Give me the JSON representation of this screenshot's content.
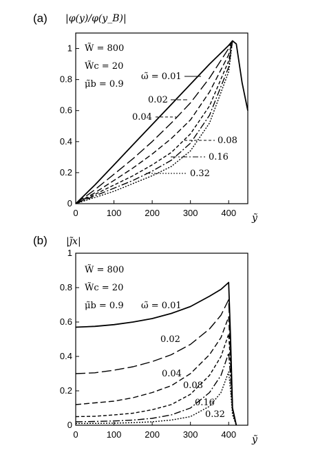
{
  "chart_data": [
    {
      "panel": "(a)",
      "type": "line",
      "title": "",
      "ylabel": "|φ(y)/φ(y_B)|",
      "xlabel": "ỹ",
      "xlim": [
        0,
        450
      ],
      "ylim": [
        0,
        1.1
      ],
      "xticks": [
        0,
        100,
        200,
        300,
        400
      ],
      "yticks": [
        0,
        0.2,
        0.4,
        0.6,
        0.8,
        1
      ],
      "ytick_labels": [
        "0",
        "0.2",
        "0.4",
        "0.6",
        "0.8",
        "1"
      ],
      "params": [
        "W̃ = 800",
        "W̃c = 20",
        "μ̃b = 0.9"
      ],
      "series": [
        {
          "name": "ω̃ = 0.01",
          "dash": "",
          "x": [
            0,
            50,
            100,
            150,
            200,
            250,
            300,
            350,
            400,
            410,
            420,
            435,
            450
          ],
          "y": [
            0,
            0.12,
            0.25,
            0.38,
            0.51,
            0.64,
            0.77,
            0.9,
            1.02,
            1.05,
            1.03,
            0.78,
            0.6
          ]
        },
        {
          "name": "0.02",
          "dash": "14 5",
          "x": [
            0,
            50,
            100,
            150,
            200,
            250,
            300,
            350,
            400,
            410
          ],
          "y": [
            0,
            0.09,
            0.19,
            0.29,
            0.4,
            0.52,
            0.65,
            0.81,
            1.0,
            1.05
          ]
        },
        {
          "name": "0.04",
          "dash": "8 4",
          "x": [
            0,
            50,
            100,
            150,
            200,
            250,
            300,
            350,
            400,
            410
          ],
          "y": [
            0,
            0.07,
            0.15,
            0.23,
            0.32,
            0.42,
            0.54,
            0.72,
            0.96,
            1.05
          ]
        },
        {
          "name": "0.08",
          "dash": "5 3",
          "x": [
            0,
            50,
            100,
            150,
            200,
            250,
            300,
            350,
            400,
            410
          ],
          "y": [
            0,
            0.06,
            0.12,
            0.18,
            0.25,
            0.33,
            0.45,
            0.63,
            0.92,
            1.05
          ]
        },
        {
          "name": "0.16",
          "dash": "10 3 2 3",
          "x": [
            0,
            50,
            100,
            150,
            200,
            250,
            300,
            350,
            400,
            410
          ],
          "y": [
            0,
            0.05,
            0.1,
            0.15,
            0.21,
            0.28,
            0.39,
            0.57,
            0.88,
            1.05
          ]
        },
        {
          "name": "0.32",
          "dash": "2 2",
          "x": [
            0,
            50,
            100,
            150,
            200,
            250,
            300,
            350,
            400,
            410
          ],
          "y": [
            0,
            0.04,
            0.08,
            0.13,
            0.18,
            0.24,
            0.34,
            0.52,
            0.85,
            1.05
          ]
        }
      ]
    },
    {
      "panel": "(b)",
      "type": "line",
      "title": "",
      "ylabel": "|j̃x|",
      "xlabel": "ỹ",
      "xlim": [
        0,
        450
      ],
      "ylim": [
        0,
        1
      ],
      "xticks": [
        0,
        100,
        200,
        300,
        400
      ],
      "yticks": [
        0,
        0.2,
        0.4,
        0.6,
        0.8,
        1
      ],
      "ytick_labels": [
        "0",
        "0.2",
        "0.4",
        "0.6",
        "0.8",
        "1"
      ],
      "params": [
        "W̃ = 800",
        "W̃c = 20",
        "μ̃b = 0.9"
      ],
      "series": [
        {
          "name": "ω̃ = 0.01",
          "dash": "",
          "x": [
            0,
            50,
            100,
            150,
            200,
            250,
            300,
            350,
            380,
            400,
            405,
            410,
            420
          ],
          "y": [
            0.57,
            0.575,
            0.585,
            0.6,
            0.62,
            0.65,
            0.69,
            0.75,
            0.79,
            0.83,
            0.5,
            0.1,
            0.0
          ]
        },
        {
          "name": "0.02",
          "dash": "14 5",
          "x": [
            0,
            50,
            100,
            150,
            200,
            250,
            300,
            350,
            380,
            400,
            405,
            410,
            420
          ],
          "y": [
            0.3,
            0.305,
            0.32,
            0.34,
            0.37,
            0.41,
            0.47,
            0.56,
            0.64,
            0.73,
            0.45,
            0.1,
            0.0
          ]
        },
        {
          "name": "0.04",
          "dash": "8 4",
          "x": [
            0,
            50,
            100,
            150,
            200,
            250,
            300,
            350,
            380,
            400,
            405,
            410,
            420
          ],
          "y": [
            0.12,
            0.13,
            0.14,
            0.16,
            0.19,
            0.23,
            0.3,
            0.41,
            0.51,
            0.63,
            0.4,
            0.1,
            0.0
          ]
        },
        {
          "name": "0.08",
          "dash": "5 3",
          "x": [
            0,
            50,
            100,
            150,
            200,
            250,
            300,
            350,
            380,
            400,
            405,
            410,
            420
          ],
          "y": [
            0.05,
            0.052,
            0.06,
            0.07,
            0.09,
            0.12,
            0.18,
            0.29,
            0.4,
            0.53,
            0.35,
            0.1,
            0.0
          ]
        },
        {
          "name": "0.16",
          "dash": "10 3 2 3",
          "x": [
            0,
            50,
            100,
            150,
            200,
            250,
            300,
            350,
            380,
            400,
            405,
            410,
            420
          ],
          "y": [
            0.02,
            0.022,
            0.025,
            0.03,
            0.04,
            0.06,
            0.1,
            0.19,
            0.29,
            0.42,
            0.28,
            0.08,
            0.0
          ]
        },
        {
          "name": "0.32",
          "dash": "2 2",
          "x": [
            0,
            50,
            100,
            150,
            200,
            250,
            300,
            350,
            380,
            400,
            405,
            410,
            420
          ],
          "y": [
            0.01,
            0.011,
            0.012,
            0.015,
            0.02,
            0.03,
            0.05,
            0.11,
            0.19,
            0.31,
            0.2,
            0.06,
            0.0
          ]
        }
      ]
    }
  ]
}
